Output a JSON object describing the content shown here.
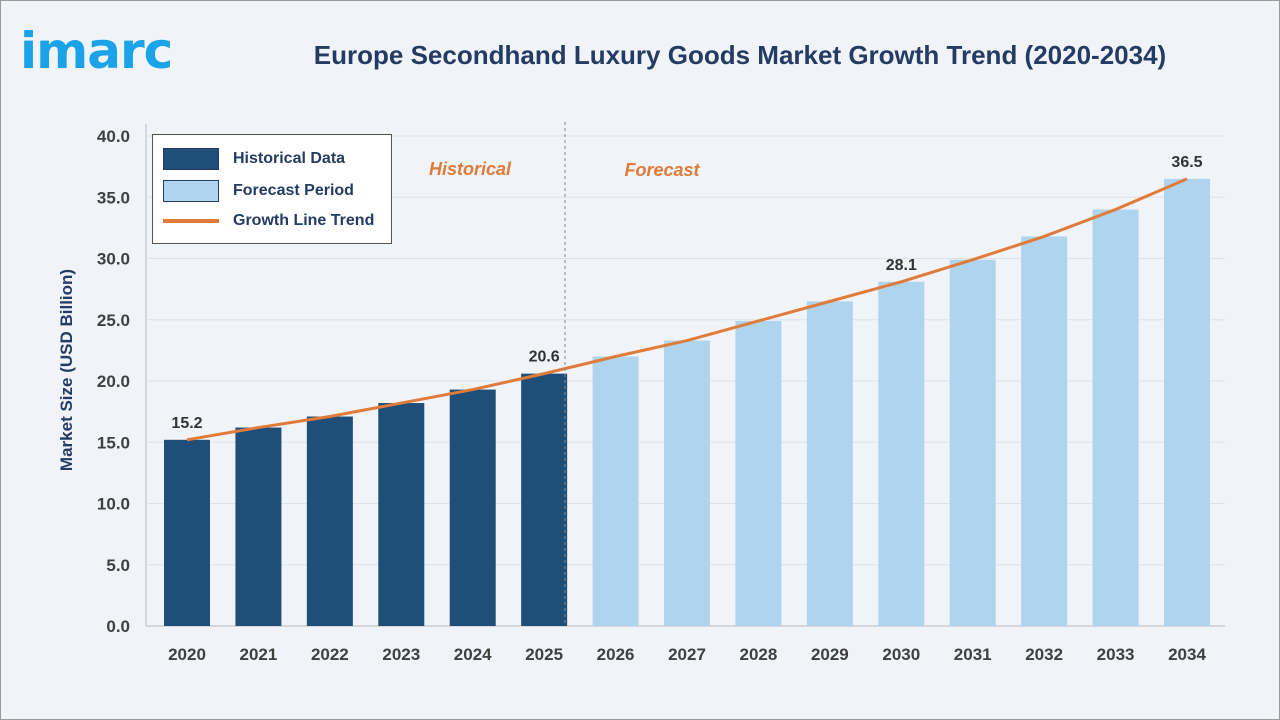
{
  "header": {
    "logo": "imarc",
    "title": "Europe Secondhand Luxury Goods Market Growth Trend (2020-2034)"
  },
  "colors": {
    "historical": "#1f4e79",
    "forecast": "#aed4ee",
    "trend": "#e07b39",
    "logo": "#1aa3e8"
  },
  "chart_data": {
    "type": "bar",
    "title": "Europe Secondhand Luxury Goods Market Growth Trend (2020-2034)",
    "xlabel": "",
    "ylabel": "Market Size (USD Billion)",
    "ylim": [
      0,
      40
    ],
    "yticks": [
      "0.0",
      "5.0",
      "10.0",
      "15.0",
      "20.0",
      "25.0",
      "30.0",
      "35.0",
      "40.0"
    ],
    "grid": true,
    "legend_position": "top-left",
    "categories": [
      "2020",
      "2021",
      "2022",
      "2023",
      "2024",
      "2025",
      "2026",
      "2027",
      "2028",
      "2029",
      "2030",
      "2031",
      "2032",
      "2033",
      "2034"
    ],
    "values": [
      15.2,
      16.2,
      17.1,
      18.2,
      19.3,
      20.6,
      22.0,
      23.3,
      24.9,
      26.5,
      28.1,
      29.9,
      31.8,
      34.0,
      36.5
    ],
    "historical_count": 6,
    "data_labels": {
      "0": "15.2",
      "5": "20.6",
      "10": "28.1",
      "14": "36.5"
    },
    "legend": [
      "Historical Data",
      "Forecast Period",
      "Growth Line Trend"
    ],
    "annotations": {
      "historical": "Historical",
      "forecast": "Forecast"
    }
  }
}
